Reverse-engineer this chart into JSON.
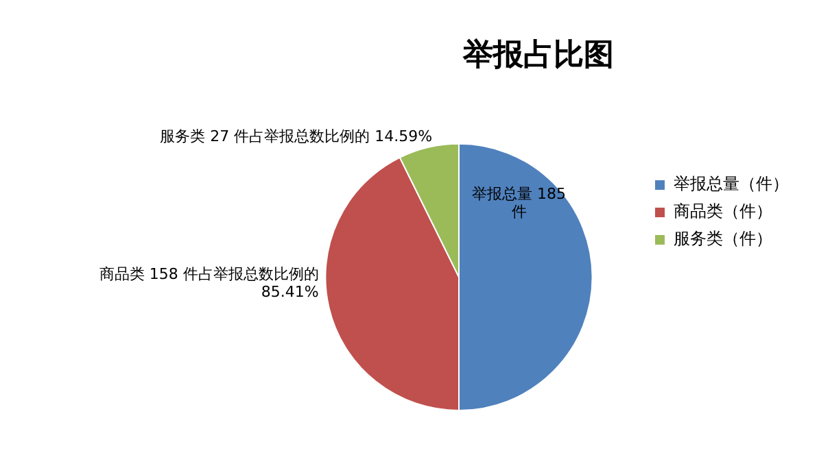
{
  "chart_data": {
    "type": "pie",
    "title": "举报占比图",
    "categories": [
      "举报总量（件）",
      "商品类（件）",
      "服务类（件）"
    ],
    "values": [
      185,
      158,
      27
    ],
    "colors": [
      "#4f81bd",
      "#c0504d",
      "#9bbb59"
    ],
    "value_labels": [
      "举报总量 185 件",
      "商品类 158 件占举报总数比例的 85.41%",
      "服务类 27 件占举报总数比例的 14.59%"
    ],
    "legend": "right"
  }
}
